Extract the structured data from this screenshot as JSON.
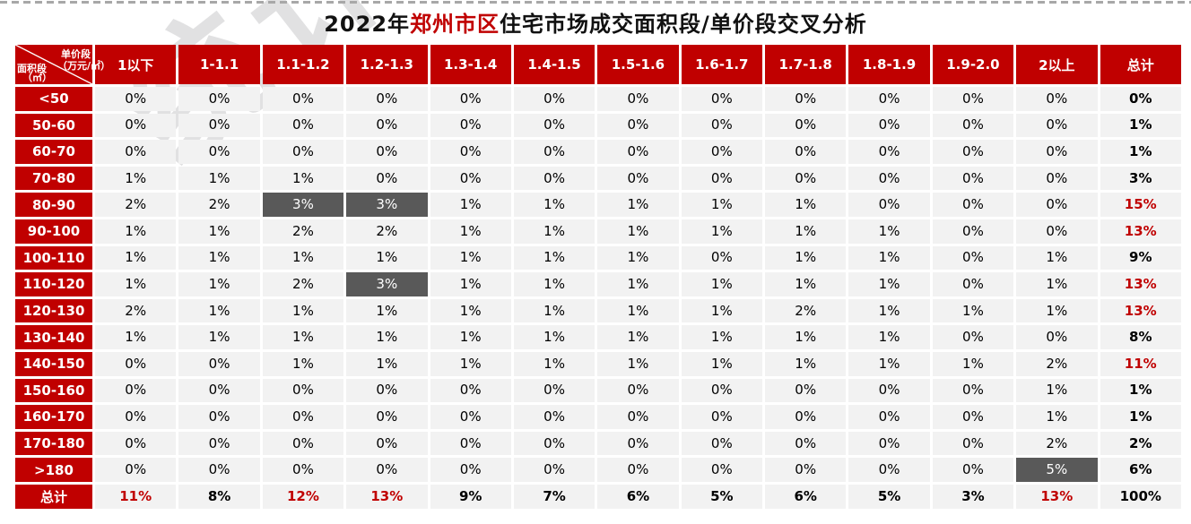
{
  "title": {
    "prefix": "2022年",
    "highlight": "郑州市区",
    "suffix": "住宅市场成交面积段/单价段交叉分析"
  },
  "watermark": {
    "text": "统计"
  },
  "colors": {
    "accent_red": "#c00000",
    "dark_highlight_cell": "#595959",
    "cell_background": "#f2f2f2",
    "red_value_text": "#c00000",
    "dashed_top_line": "#a8a8a8"
  },
  "chart_data": {
    "type": "table",
    "title": "2022年郑州市区住宅市场成交面积段/单价段交叉分析",
    "col_dimension_label": "单价段",
    "col_dimension_unit": "（万元/㎡）",
    "row_dimension_label": "面积段",
    "row_dimension_unit": "（㎡）",
    "unit": "%",
    "columns": [
      "1以下",
      "1-1.1",
      "1.1-1.2",
      "1.2-1.3",
      "1.3-1.4",
      "1.4-1.5",
      "1.5-1.6",
      "1.6-1.7",
      "1.7-1.8",
      "1.8-1.9",
      "1.9-2.0",
      "2以上",
      "总计"
    ],
    "rows": [
      {
        "label": "<50",
        "values": [
          0,
          0,
          0,
          0,
          0,
          0,
          0,
          0,
          0,
          0,
          0,
          0,
          0
        ]
      },
      {
        "label": "50-60",
        "values": [
          0,
          0,
          0,
          0,
          0,
          0,
          0,
          0,
          0,
          0,
          0,
          0,
          1
        ]
      },
      {
        "label": "60-70",
        "values": [
          0,
          0,
          0,
          0,
          0,
          0,
          0,
          0,
          0,
          0,
          0,
          0,
          1
        ]
      },
      {
        "label": "70-80",
        "values": [
          1,
          1,
          1,
          0,
          0,
          0,
          0,
          0,
          0,
          0,
          0,
          0,
          3
        ]
      },
      {
        "label": "80-90",
        "values": [
          2,
          2,
          3,
          3,
          1,
          1,
          1,
          1,
          1,
          0,
          0,
          0,
          15
        ]
      },
      {
        "label": "90-100",
        "values": [
          1,
          1,
          2,
          2,
          1,
          1,
          1,
          1,
          1,
          1,
          0,
          0,
          13
        ]
      },
      {
        "label": "100-110",
        "values": [
          1,
          1,
          1,
          1,
          1,
          1,
          1,
          0,
          1,
          1,
          0,
          1,
          9
        ]
      },
      {
        "label": "110-120",
        "values": [
          1,
          1,
          2,
          3,
          1,
          1,
          1,
          1,
          1,
          1,
          0,
          1,
          13
        ]
      },
      {
        "label": "120-130",
        "values": [
          2,
          1,
          1,
          1,
          1,
          1,
          1,
          1,
          2,
          1,
          1,
          1,
          13
        ]
      },
      {
        "label": "130-140",
        "values": [
          1,
          1,
          1,
          1,
          1,
          1,
          1,
          1,
          1,
          1,
          0,
          0,
          8
        ]
      },
      {
        "label": "140-150",
        "values": [
          0,
          0,
          1,
          1,
          1,
          1,
          1,
          1,
          1,
          1,
          1,
          2,
          11
        ]
      },
      {
        "label": "150-160",
        "values": [
          0,
          0,
          0,
          0,
          0,
          0,
          0,
          0,
          0,
          0,
          0,
          1,
          1
        ]
      },
      {
        "label": "160-170",
        "values": [
          0,
          0,
          0,
          0,
          0,
          0,
          0,
          0,
          0,
          0,
          0,
          1,
          1
        ]
      },
      {
        "label": "170-180",
        "values": [
          0,
          0,
          0,
          0,
          0,
          0,
          0,
          0,
          0,
          0,
          0,
          2,
          2
        ]
      },
      {
        "label": ">180",
        "values": [
          0,
          0,
          0,
          0,
          0,
          0,
          0,
          0,
          0,
          0,
          0,
          5,
          6
        ]
      },
      {
        "label": "总计",
        "values": [
          11,
          8,
          12,
          13,
          9,
          7,
          6,
          5,
          6,
          5,
          3,
          13,
          100
        ]
      }
    ],
    "dark_cells": [
      [
        4,
        2
      ],
      [
        4,
        3
      ],
      [
        7,
        3
      ],
      [
        14,
        11
      ]
    ],
    "red_text_cells": [
      [
        4,
        12
      ],
      [
        5,
        12
      ],
      [
        7,
        12
      ],
      [
        8,
        12
      ],
      [
        10,
        12
      ],
      [
        15,
        0
      ],
      [
        15,
        2
      ],
      [
        15,
        3
      ],
      [
        15,
        11
      ]
    ],
    "layout_hints": {
      "last_column_bold": true,
      "last_row_bold": true,
      "grid": "white 3px gaps"
    }
  }
}
